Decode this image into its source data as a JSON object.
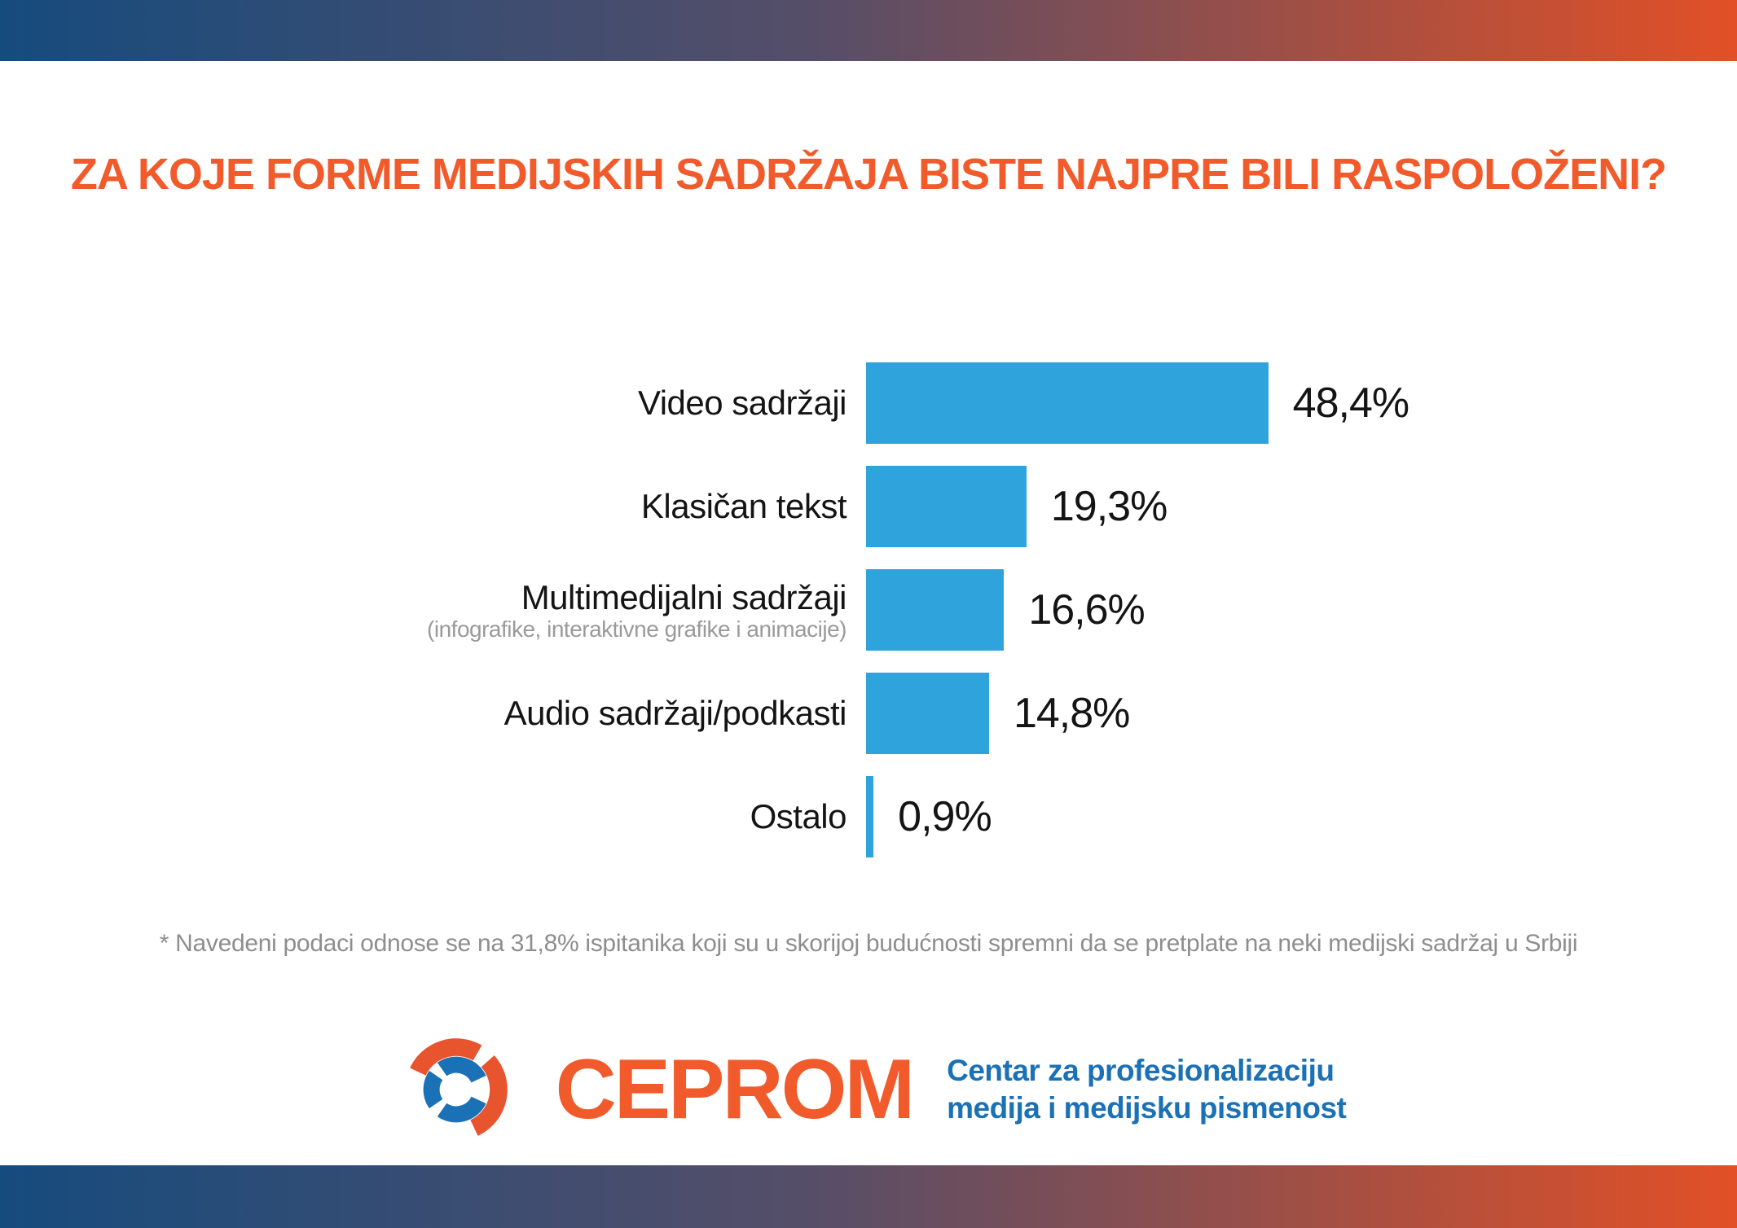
{
  "title": "ZA KOJE FORME MEDIJSKIH SADRŽAJA BISTE NAJPRE BILI RASPOLOŽENI?",
  "chart_data": {
    "type": "bar",
    "orientation": "horizontal",
    "title": "ZA KOJE FORME MEDIJSKIH SADRŽAJA BISTE NAJPRE BILI RASPOLOŽENI?",
    "categories": [
      "Video sadržaji",
      "Klasičan tekst",
      "Multimedijalni sadržaji",
      "Audio sadržaji/podkasti",
      "Ostalo"
    ],
    "sublabels": [
      "",
      "",
      "(infografike, interaktivne grafike i animacije)",
      "",
      ""
    ],
    "values": [
      48.4,
      19.3,
      16.6,
      14.8,
      0.9
    ],
    "value_labels": [
      "48,4%",
      "19,3%",
      "16,6%",
      "14,8%",
      "0,9%"
    ],
    "xlabel": "",
    "ylabel": "",
    "xlim": [
      0,
      50
    ],
    "grid": false,
    "legend": false,
    "bar_color": "#2FA3DC",
    "value_label_position": "right-of-bar"
  },
  "footnote": "* Navedeni podaci odnose se na 31,8% ispitanika koji su u skorijoj budućnosti spremni da se pretplate na neki medijski sadržaj u Srbiji",
  "logo": {
    "wordmark": "CEPROM",
    "tagline_line1": "Centar za profesionalizaciju",
    "tagline_line2": "medija i medijsku pismenost"
  },
  "colors": {
    "title_orange": "#F15B2C",
    "bar_blue": "#2FA3DC",
    "logo_orange": "#E8542D",
    "logo_blue": "#1B71B6",
    "band_gradient_left": "#164B7E",
    "band_gradient_right": "#E25026",
    "footnote_gray": "#8E8E8E"
  }
}
